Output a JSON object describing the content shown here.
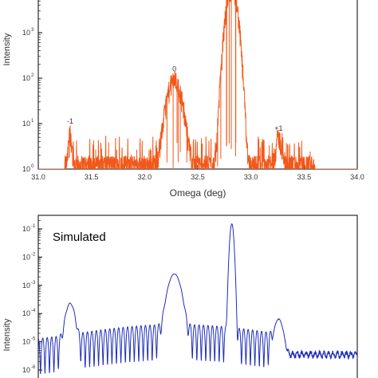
{
  "chart_data": [
    {
      "type": "line",
      "yscale": "log",
      "xlabel": "Omega (deg)",
      "ylabel": "Intensity",
      "xlim": [
        31.0,
        34.0
      ],
      "ylim": [
        1,
        10000
      ],
      "xticks": [
        "31.0",
        "31.5",
        "32.0",
        "32.5",
        "33.0",
        "33.5",
        "34.0"
      ],
      "yticks": [
        {
          "value": 1,
          "base": "10",
          "exp": "0"
        },
        {
          "value": 10,
          "base": "10",
          "exp": "1"
        },
        {
          "value": 100,
          "base": "10",
          "exp": "2"
        },
        {
          "value": 1000,
          "base": "10",
          "exp": "3"
        }
      ],
      "series": [
        {
          "color": "#f2581a",
          "peaks": [
            {
              "center": 31.3,
              "height": 4,
              "width": 0.012
            },
            {
              "center": 32.28,
              "height": 70,
              "width": 0.05
            },
            {
              "center": 32.82,
              "height": 8000,
              "width": 0.035
            },
            {
              "center": 33.26,
              "height": 3,
              "width": 0.02
            }
          ],
          "baseline": 1,
          "noise_range": [
            31.25,
            33.6
          ]
        }
      ],
      "annotations": [
        {
          "text": "-1",
          "x": 31.3,
          "y": 10
        },
        {
          "text": "0",
          "x": 32.28,
          "y": 140
        },
        {
          "text": "+1",
          "x": 33.26,
          "y": 7
        }
      ]
    },
    {
      "type": "line",
      "yscale": "log",
      "title": "Simulated",
      "ylabel": "Intensity",
      "ylim": [
        1e-06,
        0.1
      ],
      "yticks": [
        {
          "value": 0.1,
          "base": "10",
          "exp": "-1"
        },
        {
          "value": 0.01,
          "base": "10",
          "exp": "-2"
        },
        {
          "value": 0.001,
          "base": "10",
          "exp": "-3"
        },
        {
          "value": 0.0001,
          "base": "10",
          "exp": "-4"
        },
        {
          "value": 1e-05,
          "base": "10",
          "exp": "-5"
        },
        {
          "value": 1e-06,
          "base": "10",
          "exp": "-6"
        }
      ],
      "series": [
        {
          "color": "#1f2fb8",
          "peaks": [
            {
              "center": 31.3,
              "height": 0.00022,
              "width": 0.03
            },
            {
              "center": 32.28,
              "height": 0.0025,
              "width": 0.04
            },
            {
              "center": 32.82,
              "height": 0.15,
              "width": 0.012
            },
            {
              "center": 33.26,
              "height": 6e-05,
              "width": 0.03
            }
          ]
        }
      ]
    }
  ]
}
